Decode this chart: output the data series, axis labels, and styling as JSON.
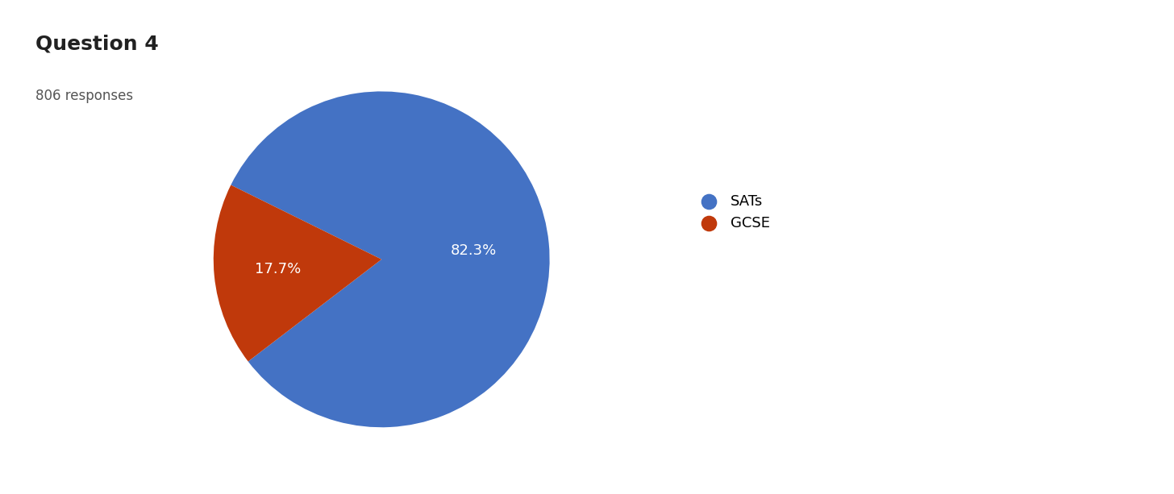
{
  "title": "Question 4",
  "subtitle": "806 responses",
  "labels": [
    "SATs",
    "GCSE"
  ],
  "values": [
    82.3,
    17.7
  ],
  "colors": [
    "#4472C4",
    "#C0390B"
  ],
  "pct_labels": [
    "82.3%",
    "17.7%"
  ],
  "title_fontsize": 18,
  "subtitle_fontsize": 12,
  "label_fontsize": 13,
  "legend_fontsize": 13,
  "background_color": "#ffffff",
  "text_color": "#212121"
}
